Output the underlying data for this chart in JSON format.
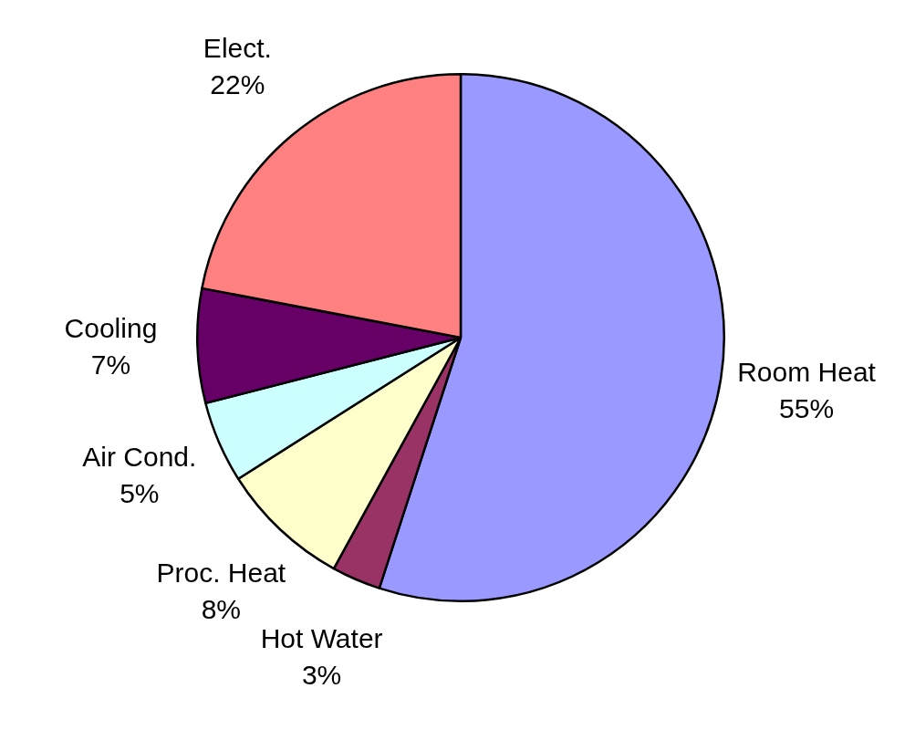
{
  "chart_data": {
    "type": "pie",
    "categories": [
      "Room Heat",
      "Hot Water",
      "Proc. Heat",
      "Air Cond.",
      "Cooling",
      "Elect."
    ],
    "values": [
      55,
      3,
      8,
      5,
      7,
      22
    ],
    "colors": [
      "#9999ff",
      "#993366",
      "#ffffcc",
      "#ccffff",
      "#660066",
      "#ff8080"
    ],
    "value_labels": [
      "55%",
      "3%",
      "8%",
      "5%",
      "7%",
      "22%"
    ]
  }
}
